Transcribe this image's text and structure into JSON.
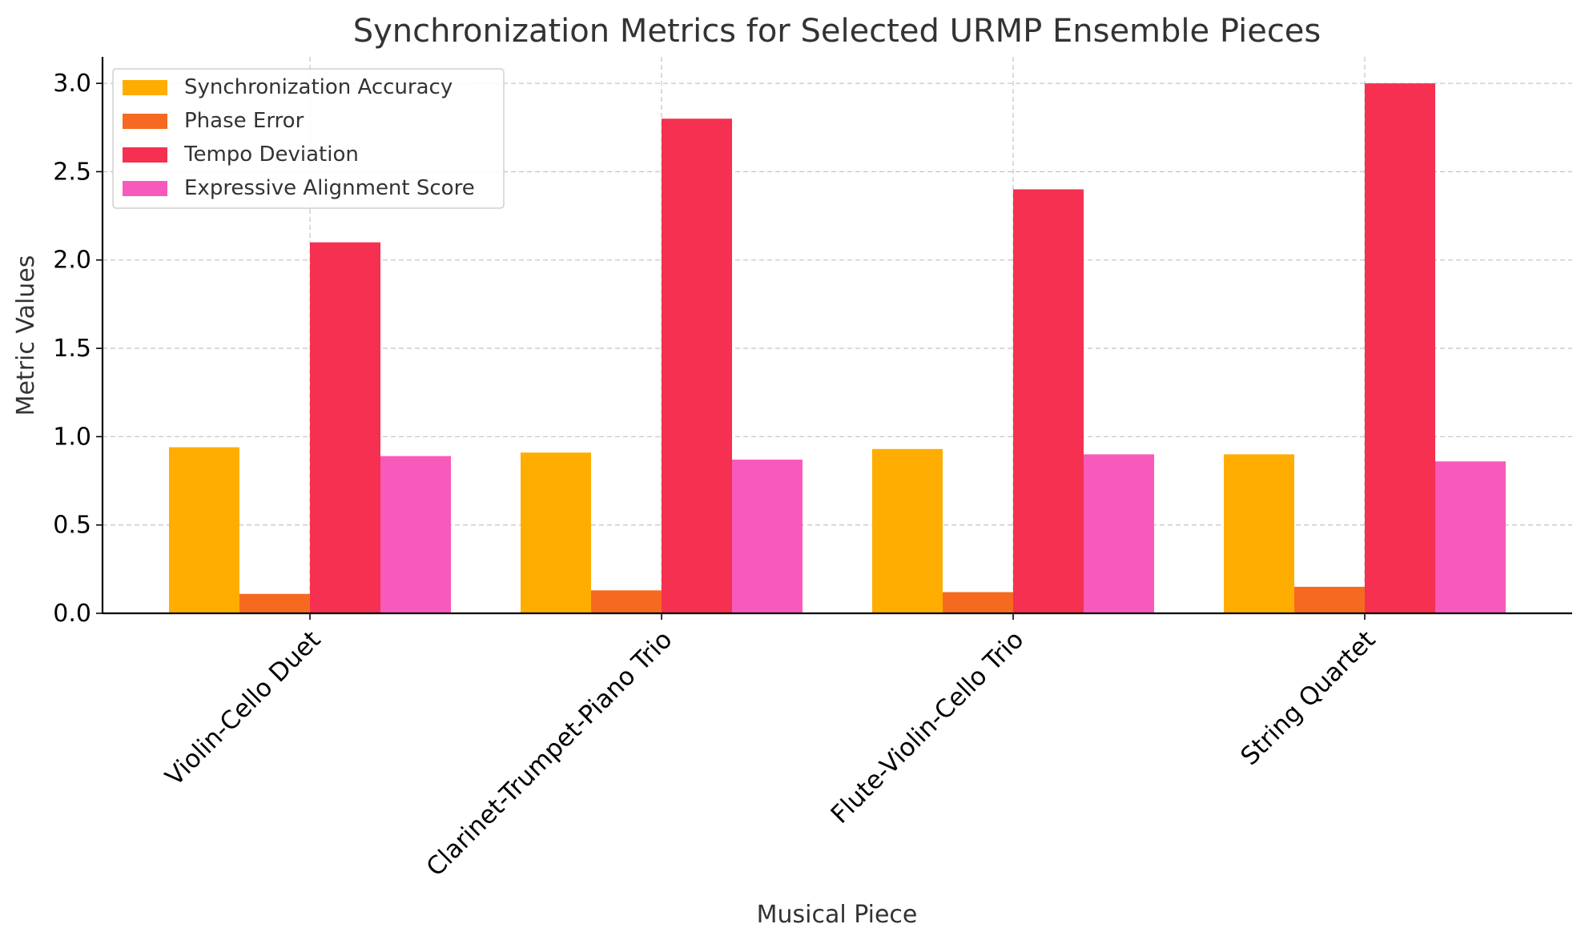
{
  "chart_data": {
    "type": "bar",
    "title": "Synchronization Metrics for Selected URMP Ensemble Pieces",
    "xlabel": "Musical Piece",
    "ylabel": "Metric Values",
    "categories": [
      "Violin-Cello Duet",
      "Clarinet-Trumpet-Piano Trio",
      "Flute-Violin-Cello Trio",
      "String Quartet"
    ],
    "series": [
      {
        "name": "Synchronization Accuracy",
        "color": "#FFAD00",
        "values": [
          0.94,
          0.91,
          0.93,
          0.9
        ]
      },
      {
        "name": "Phase Error",
        "color": "#F56A20",
        "values": [
          0.11,
          0.13,
          0.12,
          0.15
        ]
      },
      {
        "name": "Tempo Deviation",
        "color": "#F53050",
        "values": [
          2.1,
          2.8,
          2.4,
          3.0
        ]
      },
      {
        "name": "Expressive Alignment Score",
        "color": "#F85ABC",
        "values": [
          0.89,
          0.87,
          0.9,
          0.86
        ]
      }
    ],
    "ylim": [
      0,
      3.15
    ],
    "yticks": [
      "0.0",
      "0.5",
      "1.0",
      "1.5",
      "2.0",
      "2.5",
      "3.0"
    ],
    "grid": true,
    "legend_position": "top-left"
  }
}
